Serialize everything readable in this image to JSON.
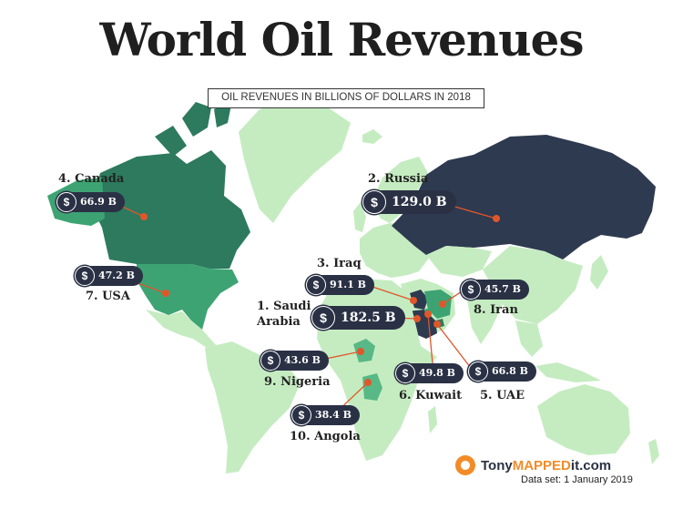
{
  "title": "World Oil Revenues",
  "subtitle": "OIL REVENUES IN BILLIONS OF DOLLARS IN 2018",
  "colors": {
    "land": "#c5ecc1",
    "dark_navy": "#2e3a4f",
    "tier_mid": "#2d7a5e",
    "tier_light": "#3da373",
    "tier_pale": "#58b886",
    "connector": "#e0562b",
    "badge": "#2a3145"
  },
  "countries": [
    {
      "label": "1. Saudi",
      "label2": "Arabia",
      "value": "182.5 B"
    },
    {
      "label": "2. Russia",
      "value": "129.0 B"
    },
    {
      "label": "3. Iraq",
      "value": "91.1 B"
    },
    {
      "label": "4. Canada",
      "value": "66.9 B"
    },
    {
      "label": "5. UAE",
      "value": "66.8 B"
    },
    {
      "label": "6. Kuwait",
      "value": "49.8 B"
    },
    {
      "label": "7. USA",
      "value": "47.2 B"
    },
    {
      "label": "8. Iran",
      "value": "45.7 B"
    },
    {
      "label": "9. Nigeria",
      "value": "43.6 B"
    },
    {
      "label": "10. Angola",
      "value": "38.4 B"
    }
  ],
  "currency_symbol": "$",
  "brand": {
    "prefix": "Tony",
    "highlight": "MAPPED",
    "suffix": "it.com"
  },
  "dataset": "Data set: 1 January 2019"
}
